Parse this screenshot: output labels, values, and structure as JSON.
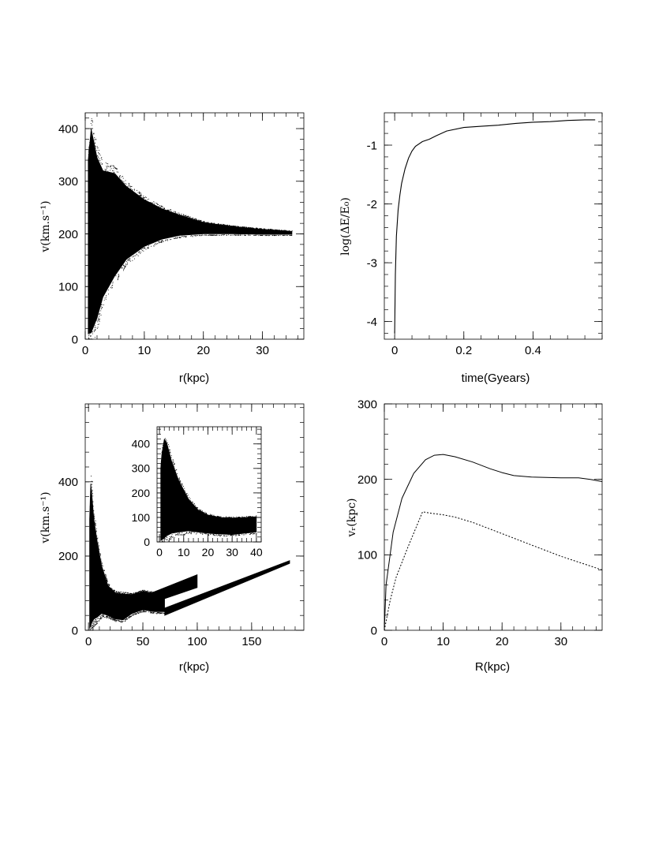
{
  "chart_data": [
    {
      "id": "a",
      "type": "scatter",
      "xlabel": "r(kpc)",
      "ylabel": "v(km.s⁻¹)",
      "xlim": [
        0,
        37
      ],
      "ylim": [
        0,
        430
      ],
      "xticks": [
        0,
        10,
        20,
        30
      ],
      "yticks": [
        0,
        100,
        200,
        300,
        400
      ],
      "xtick_labels": [
        "0",
        "10",
        "20",
        "30"
      ],
      "ytick_labels": [
        "0",
        "100",
        "200",
        "300",
        "400"
      ],
      "envelope": {
        "r": [
          0.5,
          1,
          2,
          3,
          5,
          7,
          10,
          13,
          16,
          20,
          25,
          30,
          35
        ],
        "v_upper": [
          340,
          400,
          345,
          320,
          315,
          290,
          265,
          248,
          236,
          222,
          214,
          209,
          205
        ],
        "v_lower": [
          10,
          12,
          40,
          80,
          120,
          152,
          176,
          190,
          197,
          200,
          200,
          199,
          199
        ]
      }
    },
    {
      "id": "b",
      "type": "line",
      "xlabel": "time(Gyears)",
      "ylabel": "log(ΔE/E₀)",
      "xlim": [
        -0.03,
        0.6
      ],
      "ylim": [
        -4.3,
        -0.45
      ],
      "xticks": [
        0,
        0.2,
        0.4
      ],
      "yticks": [
        -1,
        -2,
        -3,
        -4
      ],
      "xtick_labels": [
        "0",
        "0.2",
        "0.4"
      ],
      "ytick_labels": [
        "-1",
        "-2",
        "-3",
        "-4"
      ],
      "series": [
        {
          "x": [
            0,
            0.002,
            0.005,
            0.01,
            0.015,
            0.02,
            0.03,
            0.04,
            0.05,
            0.06,
            0.08,
            0.1,
            0.12,
            0.15,
            0.2,
            0.25,
            0.3,
            0.35,
            0.4,
            0.45,
            0.5,
            0.55,
            0.58
          ],
          "y": [
            -4.2,
            -3.2,
            -2.55,
            -2.1,
            -1.85,
            -1.65,
            -1.4,
            -1.22,
            -1.1,
            -1.02,
            -0.94,
            -0.9,
            -0.84,
            -0.76,
            -0.7,
            -0.68,
            -0.66,
            -0.63,
            -0.61,
            -0.6,
            -0.58,
            -0.57,
            -0.57
          ]
        }
      ]
    },
    {
      "id": "c",
      "type": "scatter",
      "xlabel": "r(kpc)",
      "ylabel": "v(km.s⁻¹)",
      "xlim": [
        -3,
        198
      ],
      "ylim": [
        0,
        610
      ],
      "xticks": [
        0,
        50,
        100,
        150
      ],
      "yticks": [
        0,
        200,
        400
      ],
      "xtick_labels": [
        "0",
        "50",
        "100",
        "150"
      ],
      "ytick_labels": [
        "0",
        "200",
        "400"
      ],
      "envelope": {
        "r": [
          1,
          2,
          3,
          5,
          8,
          12,
          18,
          25,
          32,
          40,
          50,
          60,
          70
        ],
        "v_upper": [
          300,
          395,
          370,
          300,
          240,
          175,
          120,
          100,
          98,
          96,
          105,
          100,
          95
        ],
        "v_lower": [
          5,
          10,
          20,
          30,
          35,
          45,
          40,
          30,
          28,
          45,
          55,
          50,
          50
        ]
      },
      "streams": [
        {
          "r": [
            40,
            100
          ],
          "v_low": [
            55,
            115
          ],
          "v_high": [
            80,
            150
          ]
        },
        {
          "r": [
            70,
            185
          ],
          "v_low": [
            40,
            180
          ],
          "v_high": [
            60,
            188
          ]
        }
      ],
      "inset": {
        "type": "scatter",
        "xlim": [
          -1,
          42
        ],
        "ylim": [
          0,
          470
        ],
        "xticks": [
          0,
          10,
          20,
          30,
          40
        ],
        "yticks": [
          0,
          100,
          200,
          300,
          400
        ],
        "xtick_labels": [
          "0",
          "10",
          "20",
          "30",
          "40"
        ],
        "ytick_labels": [
          "0",
          "100",
          "200",
          "300",
          "400"
        ],
        "envelope": {
          "r": [
            0.5,
            1,
            2,
            3,
            5,
            8,
            12,
            16,
            20,
            25,
            30,
            35,
            40
          ],
          "v_upper": [
            300,
            360,
            420,
            405,
            330,
            250,
            175,
            130,
            110,
            100,
            98,
            100,
            103
          ],
          "v_lower": [
            5,
            8,
            15,
            25,
            35,
            40,
            45,
            40,
            35,
            32,
            30,
            35,
            40
          ]
        }
      }
    },
    {
      "id": "d",
      "type": "line",
      "xlabel": "R(kpc)",
      "ylabel": "vᵣ(kpc)",
      "xlim": [
        0,
        37
      ],
      "ylim": [
        0,
        300
      ],
      "xticks": [
        0,
        10,
        20,
        30
      ],
      "yticks": [
        0,
        100,
        200,
        300
      ],
      "xtick_labels": [
        "0",
        "10",
        "20",
        "30"
      ],
      "ytick_labels": [
        "0",
        "100",
        "200",
        "300"
      ],
      "series": [
        {
          "style": "solid",
          "x": [
            0,
            0.3,
            1.5,
            3,
            5,
            7,
            8.5,
            10,
            12,
            15,
            18,
            20,
            22,
            25,
            30,
            33,
            35,
            37
          ],
          "y": [
            0,
            60,
            130,
            175,
            208,
            226,
            232,
            233,
            230,
            223,
            214,
            209,
            205,
            203,
            202,
            202,
            200,
            197
          ]
        },
        {
          "style": "dashed",
          "x": [
            0,
            1,
            2,
            4,
            6.5,
            8,
            10,
            12,
            15,
            20,
            25,
            30,
            37
          ],
          "y": [
            0,
            40,
            70,
            110,
            157,
            155,
            153,
            150,
            143,
            128,
            113,
            98,
            80
          ]
        }
      ]
    }
  ]
}
